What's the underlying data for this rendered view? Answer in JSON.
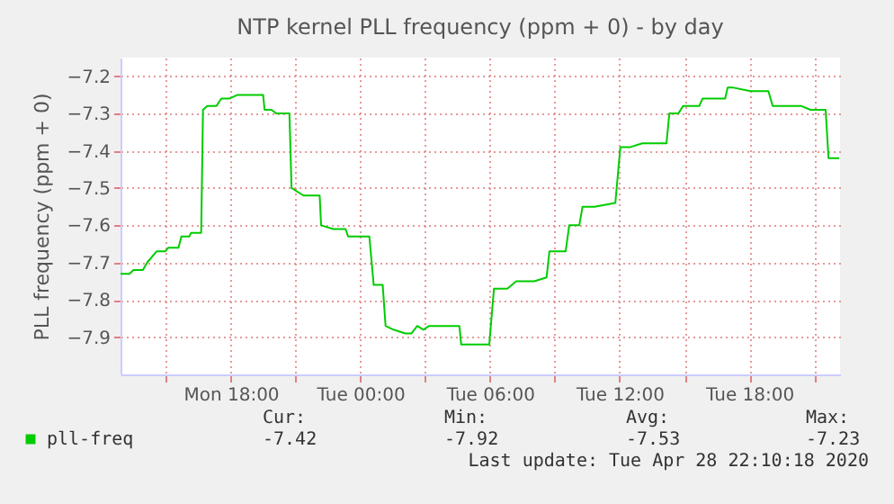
{
  "chart_data": {
    "type": "line",
    "title": "NTP kernel PLL frequency (ppm + 0) - by day",
    "ylabel": "PLL frequency (ppm + 0)",
    "xlim": [
      "2020-04-27T12:54",
      "2020-04-28T22:12"
    ],
    "ylim": [
      -8.0,
      -7.15
    ],
    "xticks": [
      {
        "value": "2020-04-27T15:00",
        "label": null
      },
      {
        "value": "2020-04-27T18:00",
        "label": "Mon 18:00"
      },
      {
        "value": "2020-04-27T21:00",
        "label": null
      },
      {
        "value": "2020-04-28T00:00",
        "label": "Tue 00:00"
      },
      {
        "value": "2020-04-28T03:00",
        "label": null
      },
      {
        "value": "2020-04-28T06:00",
        "label": "Tue 06:00"
      },
      {
        "value": "2020-04-28T09:00",
        "label": null
      },
      {
        "value": "2020-04-28T12:00",
        "label": "Tue 12:00"
      },
      {
        "value": "2020-04-28T15:00",
        "label": null
      },
      {
        "value": "2020-04-28T18:00",
        "label": "Tue 18:00"
      },
      {
        "value": "2020-04-28T21:00",
        "label": null
      }
    ],
    "yticks": [
      -7.9,
      -7.8,
      -7.7,
      -7.6,
      -7.5,
      -7.4,
      -7.3,
      -7.2
    ],
    "grid": true,
    "legend": "bottom left",
    "line_style": "solid",
    "marker": "none",
    "x": [
      "2020-04-27T12:54",
      "2020-04-27T13:19",
      "2020-04-27T13:30",
      "2020-04-27T13:56",
      "2020-04-27T14:08",
      "2020-04-27T14:34",
      "2020-04-27T14:58",
      "2020-04-27T15:07",
      "2020-04-27T15:35",
      "2020-04-27T15:43",
      "2020-04-27T16:05",
      "2020-04-27T16:10",
      "2020-04-27T16:38",
      "2020-04-27T16:43",
      "2020-04-27T16:55",
      "2020-04-27T17:20",
      "2020-04-27T17:34",
      "2020-04-27T17:56",
      "2020-04-27T18:19",
      "2020-04-27T19:30",
      "2020-04-27T19:34",
      "2020-04-27T19:53",
      "2020-04-27T20:07",
      "2020-04-27T20:43",
      "2020-04-27T20:49",
      "2020-04-27T21:22",
      "2020-04-27T22:07",
      "2020-04-27T22:11",
      "2020-04-27T22:45",
      "2020-04-27T23:19",
      "2020-04-27T23:26",
      "2020-04-28T00:25",
      "2020-04-28T00:37",
      "2020-04-28T01:02",
      "2020-04-28T01:10",
      "2020-04-28T01:32",
      "2020-04-28T02:05",
      "2020-04-28T02:22",
      "2020-04-28T02:38",
      "2020-04-28T02:55",
      "2020-04-28T03:11",
      "2020-04-28T04:35",
      "2020-04-28T04:40",
      "2020-04-28T05:58",
      "2020-04-28T06:11",
      "2020-04-28T06:48",
      "2020-04-28T07:13",
      "2020-04-28T08:03",
      "2020-04-28T08:37",
      "2020-04-28T08:45",
      "2020-04-28T09:30",
      "2020-04-28T09:40",
      "2020-04-28T10:08",
      "2020-04-28T10:17",
      "2020-04-28T10:50",
      "2020-04-28T11:48",
      "2020-04-28T12:02",
      "2020-04-28T12:30",
      "2020-04-28T13:03",
      "2020-04-28T14:10",
      "2020-04-28T14:18",
      "2020-04-28T14:43",
      "2020-04-28T14:56",
      "2020-04-28T15:41",
      "2020-04-28T15:50",
      "2020-04-28T16:53",
      "2020-04-28T17:00",
      "2020-04-28T17:13",
      "2020-04-28T18:03",
      "2020-04-28T18:53",
      "2020-04-28T19:05",
      "2020-04-28T19:52",
      "2020-04-28T20:25",
      "2020-04-28T20:50",
      "2020-04-28T21:32",
      "2020-04-28T21:40",
      "2020-04-28T22:10"
    ],
    "series": [
      {
        "name": "pll-freq",
        "color": "#00cc00",
        "values": [
          -7.73,
          -7.73,
          -7.72,
          -7.72,
          -7.7,
          -7.67,
          -7.67,
          -7.66,
          -7.66,
          -7.63,
          -7.63,
          -7.62,
          -7.62,
          -7.29,
          -7.28,
          -7.28,
          -7.26,
          -7.26,
          -7.25,
          -7.25,
          -7.29,
          -7.29,
          -7.3,
          -7.3,
          -7.5,
          -7.52,
          -7.52,
          -7.6,
          -7.61,
          -7.61,
          -7.63,
          -7.63,
          -7.76,
          -7.76,
          -7.87,
          -7.88,
          -7.89,
          -7.89,
          -7.87,
          -7.88,
          -7.87,
          -7.87,
          -7.92,
          -7.92,
          -7.77,
          -7.77,
          -7.75,
          -7.75,
          -7.74,
          -7.67,
          -7.67,
          -7.6,
          -7.6,
          -7.55,
          -7.55,
          -7.54,
          -7.39,
          -7.39,
          -7.38,
          -7.38,
          -7.3,
          -7.3,
          -7.28,
          -7.28,
          -7.26,
          -7.26,
          -7.23,
          -7.23,
          -7.24,
          -7.24,
          -7.28,
          -7.28,
          -7.28,
          -7.29,
          -7.29,
          -7.42,
          -7.42
        ]
      }
    ],
    "annotations": [
      "Cur:",
      "-7.42",
      "Min:",
      "-7.92",
      "Avg:",
      "-7.53",
      "Max:",
      "-7.23",
      "Last update: Tue Apr 28 22:10:18 2020"
    ]
  }
}
